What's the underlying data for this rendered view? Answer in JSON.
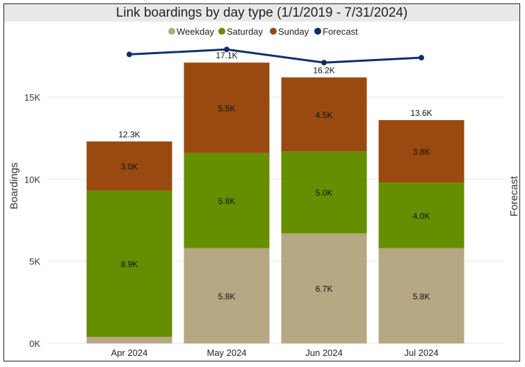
{
  "chart_data": {
    "type": "bar",
    "stacked": true,
    "title": "Link boardings by day type (1/1/2019 - 7/31/2024)",
    "ylabel": "Boardings",
    "y2label": "Forecast",
    "ylim": [
      0,
      17500
    ],
    "yticks": [
      0,
      5000,
      10000,
      15000
    ],
    "ytick_labels": [
      "0K",
      "5K",
      "10K",
      "15K"
    ],
    "grid": true,
    "legend_position": "top",
    "categories": [
      "Apr 2024",
      "May 2024",
      "Jun 2024",
      "Jul 2024"
    ],
    "series": [
      {
        "name": "Weekday",
        "color": "#b5a882",
        "values": [
          400,
          5800,
          6700,
          5800
        ],
        "labels": [
          "",
          "5.8K",
          "6.7K",
          "5.8K"
        ]
      },
      {
        "name": "Saturday",
        "color": "#668f00",
        "values": [
          8900,
          5800,
          5000,
          4000
        ],
        "labels": [
          "8.9K",
          "5.8K",
          "5.0K",
          "4.0K"
        ]
      },
      {
        "name": "Sunday",
        "color": "#9a4a10",
        "values": [
          3000,
          5500,
          4500,
          3800
        ],
        "labels": [
          "3.0K",
          "5.5K",
          "4.5K",
          "3.8K"
        ]
      }
    ],
    "totals": [
      12300,
      17100,
      16200,
      13600
    ],
    "total_labels": [
      "12.3K",
      "17.1K",
      "16.2K",
      "13.6K"
    ],
    "line_series": {
      "name": "Forecast",
      "color": "#0f2f66",
      "values": [
        17600,
        17900,
        17100,
        17400
      ]
    }
  }
}
